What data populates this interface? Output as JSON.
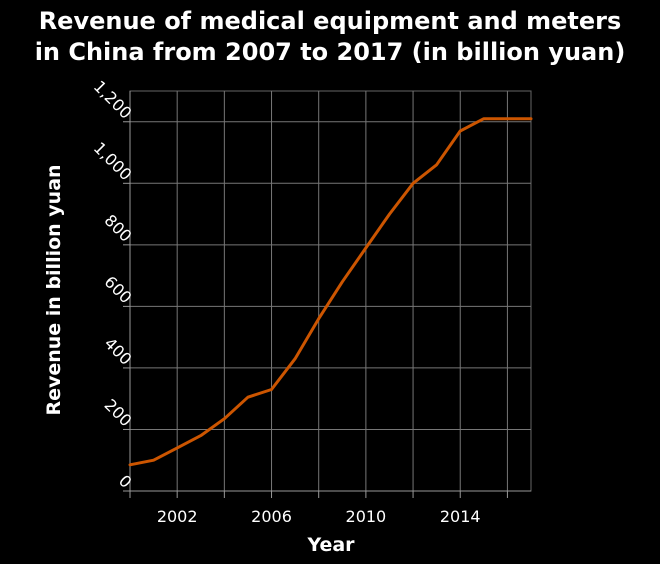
{
  "chart_data": {
    "type": "line",
    "title_line1": "Revenue of medical equipment and meters",
    "title_line2": "in China from 2007 to 2017 (in billion yuan)",
    "xlabel": "Year",
    "ylabel": "Revenue in billion yuan",
    "xlim": [
      2000,
      2017
    ],
    "ylim": [
      0,
      1300
    ],
    "x_ticks": [
      2002,
      2006,
      2010,
      2014
    ],
    "x_grid": [
      2000,
      2002,
      2004,
      2006,
      2008,
      2010,
      2012,
      2014,
      2016
    ],
    "y_ticks": [
      0,
      200,
      400,
      600,
      800,
      1000,
      1200
    ],
    "y_tick_labels": [
      "0",
      "200",
      "400",
      "600",
      "800",
      "1,000",
      "1,200"
    ],
    "grid": true,
    "series": [
      {
        "color": "#cc5500",
        "x": [
          2000,
          2001,
          2002,
          2003,
          2004,
          2005,
          2006,
          2007,
          2008,
          2009,
          2010,
          2011,
          2012,
          2013,
          2014,
          2015,
          2016,
          2017
        ],
        "y": [
          85,
          100,
          140,
          180,
          235,
          305,
          330,
          430,
          560,
          680,
          790,
          900,
          1000,
          1060,
          1170,
          1210,
          1210,
          1210
        ]
      }
    ]
  }
}
